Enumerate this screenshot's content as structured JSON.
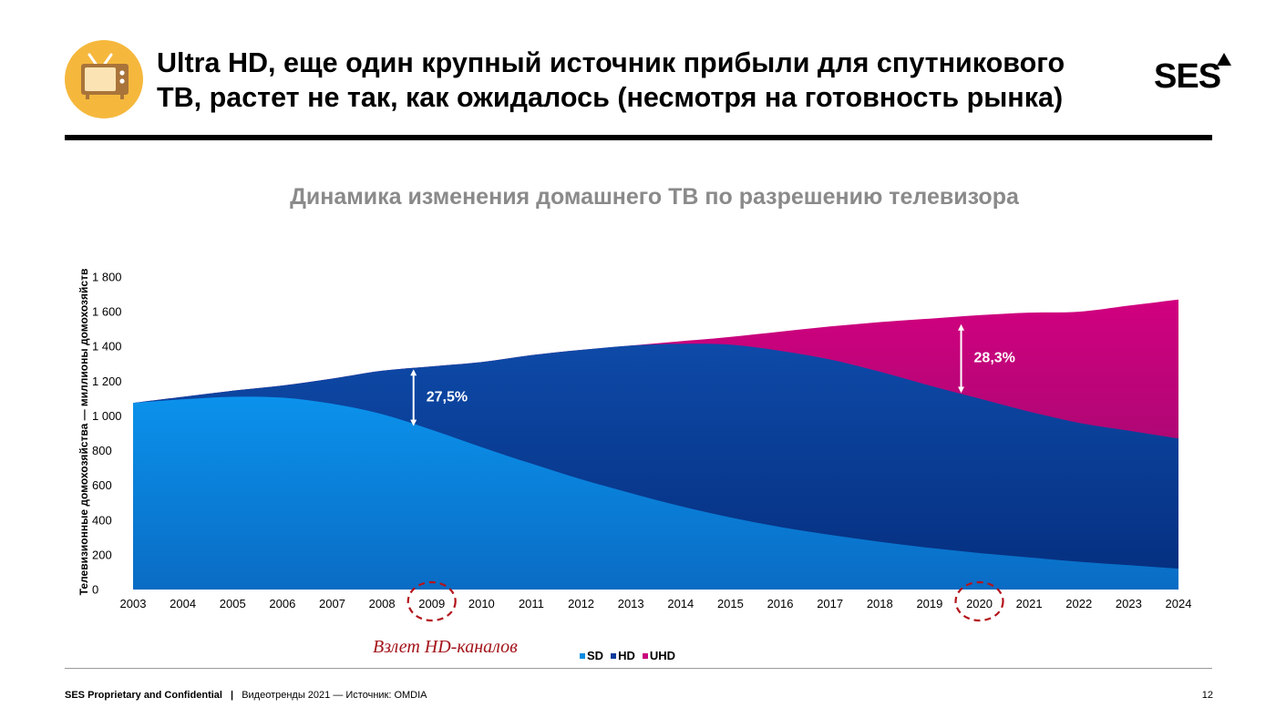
{
  "header": {
    "title_line1": "Ultra HD, еще один крупный источник прибыли для спутникового",
    "title_line2": "ТВ, растет не так, как ожидалось (несмотря на готовность рынка)",
    "icon": "tv-icon",
    "logo_text": "SES"
  },
  "chart_title": "Динамика изменения домашнего ТВ по разрешению телевизора",
  "chart_data": {
    "type": "area",
    "stacked": true,
    "x": [
      2003,
      2004,
      2005,
      2006,
      2007,
      2008,
      2009,
      2010,
      2011,
      2012,
      2013,
      2014,
      2015,
      2016,
      2017,
      2018,
      2019,
      2020,
      2021,
      2022,
      2023,
      2024
    ],
    "ylabel": "Телевизионные домохозяйства — миллионы домохозяйств",
    "ylim": [
      0,
      1800
    ],
    "ytick_labels": [
      "0",
      "200",
      "400",
      "600",
      "800",
      "1 000",
      "1 200",
      "1 400",
      "1 600",
      "1 800"
    ],
    "xtick_labels": [
      "2003",
      "2004",
      "2005",
      "2006",
      "2007",
      "2008",
      "2009",
      "2010",
      "2011",
      "2012",
      "2013",
      "2014",
      "2015",
      "2016",
      "2017",
      "2018",
      "2019",
      "2020",
      "2021",
      "2022",
      "2023",
      "2024"
    ],
    "series": [
      {
        "name": "SD",
        "color": "#0b8ce0",
        "values": [
          1075,
          1095,
          1110,
          1105,
          1070,
          1010,
          920,
          820,
          725,
          635,
          555,
          480,
          415,
          360,
          315,
          275,
          240,
          210,
          185,
          160,
          140,
          120
        ]
      },
      {
        "name": "HD",
        "color": "#0d3a9a",
        "values": [
          0,
          15,
          35,
          70,
          145,
          250,
          365,
          490,
          625,
          745,
          850,
          935,
          995,
          1015,
          1010,
          980,
          935,
          890,
          840,
          800,
          775,
          750
        ]
      },
      {
        "name": "UHD",
        "color": "#c8007c",
        "values": [
          0,
          0,
          0,
          0,
          0,
          0,
          0,
          0,
          0,
          0,
          0,
          15,
          45,
          110,
          190,
          285,
          385,
          480,
          570,
          640,
          720,
          800
        ]
      }
    ],
    "annotations": [
      {
        "text": "27,5%",
        "x": 2009,
        "y_from": 960,
        "y_to": 1250
      },
      {
        "text": "28,3%",
        "x": 2020,
        "y_from": 1150,
        "y_to": 1510
      }
    ],
    "circled_years": [
      2009,
      2020
    ],
    "annotation_label": "Взлет HD-каналов",
    "legend_position": "bottom",
    "grid": false
  },
  "footer": {
    "confidential": "SES Proprietary and Confidential",
    "separator": "|",
    "source": "Видеотренды 2021 — Источник: OMDIA",
    "page_number": "12"
  }
}
